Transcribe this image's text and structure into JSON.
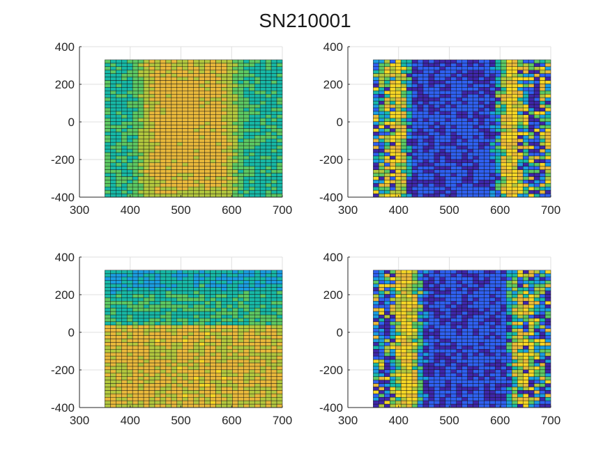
{
  "figure": {
    "title": "SN210001"
  },
  "chart_data": [
    {
      "type": "heatmap",
      "panel": "top-left",
      "title": "",
      "xlabel": "",
      "ylabel": "",
      "xlim": [
        300,
        700
      ],
      "ylim": [
        -400,
        400
      ],
      "xticks": [
        300,
        400,
        500,
        600,
        700
      ],
      "yticks": [
        -400,
        -200,
        0,
        200,
        400
      ],
      "xtick_labels": [
        "300",
        "400",
        "500",
        "600",
        "700"
      ],
      "ytick_labels": [
        "-400",
        "-200",
        "0",
        "200",
        "400"
      ],
      "grid": true,
      "data_extent": {
        "x": [
          350,
          700
        ],
        "y": [
          -400,
          330
        ]
      },
      "cell_counts": {
        "nx": 32,
        "ny": 40
      },
      "pattern": "smooth-center",
      "colormap": [
        "#3e26a8",
        "#2f60f0",
        "#1b9de0",
        "#17b8a6",
        "#5cc863",
        "#b2c73e",
        "#e8b83b",
        "#f5d626"
      ],
      "seed": 11
    },
    {
      "type": "heatmap",
      "panel": "top-right",
      "title": "",
      "xlabel": "",
      "ylabel": "",
      "xlim": [
        300,
        700
      ],
      "ylim": [
        -400,
        400
      ],
      "xticks": [
        300,
        400,
        500,
        600,
        700
      ],
      "yticks": [
        -400,
        -200,
        0,
        200,
        400
      ],
      "xtick_labels": [
        "300",
        "400",
        "500",
        "600",
        "700"
      ],
      "ytick_labels": [
        "-400",
        "-200",
        "0",
        "200",
        "400"
      ],
      "grid": true,
      "data_extent": {
        "x": [
          350,
          700
        ],
        "y": [
          -400,
          330
        ]
      },
      "cell_counts": {
        "nx": 32,
        "ny": 40
      },
      "pattern": "rings",
      "colormap": [
        "#3e26a8",
        "#2f60f0",
        "#1b9de0",
        "#17b8a6",
        "#5cc863",
        "#b2c73e",
        "#e8b83b",
        "#f5d626"
      ],
      "seed": 23
    },
    {
      "type": "heatmap",
      "panel": "bottom-left",
      "title": "",
      "xlabel": "",
      "ylabel": "",
      "xlim": [
        300,
        700
      ],
      "ylim": [
        -400,
        400
      ],
      "xticks": [
        300,
        400,
        500,
        600,
        700
      ],
      "yticks": [
        -400,
        -200,
        0,
        200,
        400
      ],
      "xtick_labels": [
        "300",
        "400",
        "500",
        "600",
        "700"
      ],
      "ytick_labels": [
        "-400",
        "-200",
        "0",
        "200",
        "400"
      ],
      "grid": true,
      "data_extent": {
        "x": [
          350,
          700
        ],
        "y": [
          -400,
          330
        ]
      },
      "cell_counts": {
        "nx": 32,
        "ny": 40
      },
      "pattern": "smooth-gradient",
      "colormap": [
        "#3e26a8",
        "#2f60f0",
        "#1b9de0",
        "#17b8a6",
        "#5cc863",
        "#b2c73e",
        "#e8b83b",
        "#f5d626"
      ],
      "seed": 37
    },
    {
      "type": "heatmap",
      "panel": "bottom-right",
      "title": "",
      "xlabel": "",
      "ylabel": "",
      "xlim": [
        300,
        700
      ],
      "ylim": [
        -400,
        400
      ],
      "xticks": [
        300,
        400,
        500,
        600,
        700
      ],
      "yticks": [
        -400,
        -200,
        0,
        200,
        400
      ],
      "xtick_labels": [
        "300",
        "400",
        "500",
        "600",
        "700"
      ],
      "ytick_labels": [
        "-400",
        "-200",
        "0",
        "200",
        "400"
      ],
      "grid": true,
      "data_extent": {
        "x": [
          350,
          700
        ],
        "y": [
          -400,
          330
        ]
      },
      "cell_counts": {
        "nx": 32,
        "ny": 40
      },
      "pattern": "rings-offset",
      "colormap": [
        "#3e26a8",
        "#2f60f0",
        "#1b9de0",
        "#17b8a6",
        "#5cc863",
        "#b2c73e",
        "#e8b83b",
        "#f5d626"
      ],
      "seed": 53
    }
  ]
}
